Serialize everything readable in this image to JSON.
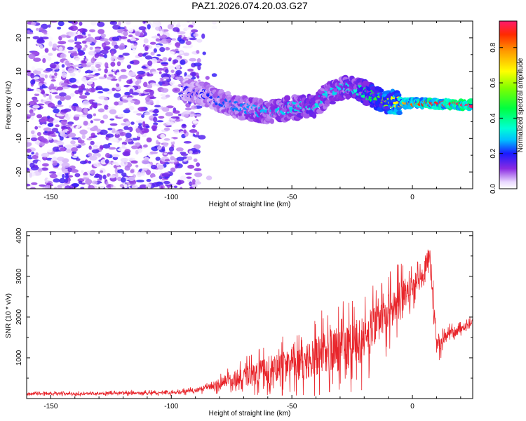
{
  "chart_data": [
    {
      "type": "heatmap",
      "title": "PAZ1.2026.074.20.03.G27",
      "xlabel": "Height of straight line (km)",
      "ylabel": "Frequency (Hz)",
      "xlim": [
        -160,
        25
      ],
      "ylim": [
        -25,
        25
      ],
      "xticks": [
        -150,
        -100,
        -50,
        0
      ],
      "yticks": [
        -20,
        -10,
        0,
        10,
        20
      ],
      "colorbar": {
        "label": "Normalized spectral amplitude",
        "range": [
          0,
          0.95
        ],
        "ticks": [
          "0.0",
          "0.2",
          "0.4",
          "0.6",
          "0.8"
        ],
        "tick_values": [
          0.0,
          0.2,
          0.4,
          0.6,
          0.8
        ]
      },
      "ridge": {
        "height_km": [
          -95,
          -85,
          -80,
          -70,
          -60,
          -50,
          -40,
          -35,
          -30,
          -25,
          -20,
          -15,
          -10,
          -5,
          0,
          5,
          10,
          15,
          20,
          25
        ],
        "frequency_hz": [
          4,
          3,
          1,
          -1,
          -2,
          -1,
          0,
          3,
          5,
          5,
          4,
          2,
          1,
          0.5,
          0.5,
          0.5,
          0.3,
          0.2,
          0.1,
          0
        ],
        "amplitude": [
          0.18,
          0.2,
          0.22,
          0.25,
          0.28,
          0.3,
          0.32,
          0.3,
          0.3,
          0.32,
          0.4,
          0.5,
          0.6,
          0.72,
          0.82,
          0.88,
          0.9,
          0.92,
          0.94,
          0.95
        ]
      },
      "noise_region_km": [
        -160,
        -88
      ],
      "noise_amplitude_max": 0.18
    },
    {
      "type": "line",
      "xlabel": "Height of straight line (km)",
      "ylabel": "SNR (10 * v/v)",
      "xlim": [
        -160,
        25
      ],
      "ylim": [
        0,
        4100
      ],
      "xticks": [
        -150,
        -100,
        -50,
        0
      ],
      "yticks": [
        1000,
        2000,
        3000,
        4000
      ],
      "series": [
        {
          "name": "SNR",
          "color": "#e8242a",
          "x": [
            -160,
            -140,
            -120,
            -100,
            -90,
            -85,
            -80,
            -75,
            -70,
            -65,
            -60,
            -55,
            -50,
            -45,
            -40,
            -35,
            -30,
            -25,
            -20,
            -15,
            -10,
            -5,
            0,
            3,
            5,
            7,
            10,
            15,
            20,
            25
          ],
          "y": [
            120,
            120,
            130,
            140,
            200,
            270,
            380,
            460,
            520,
            600,
            700,
            780,
            820,
            880,
            1000,
            1150,
            1250,
            1350,
            1450,
            1750,
            2100,
            2500,
            2750,
            2900,
            3150,
            3600,
            1350,
            1550,
            1700,
            1900
          ],
          "noise_amplitude": [
            50,
            50,
            55,
            60,
            80,
            120,
            200,
            280,
            380,
            480,
            550,
            600,
            650,
            700,
            800,
            900,
            950,
            1000,
            950,
            900,
            800,
            650,
            450,
            400,
            380,
            420,
            400,
            220,
            150,
            130
          ]
        }
      ]
    }
  ]
}
